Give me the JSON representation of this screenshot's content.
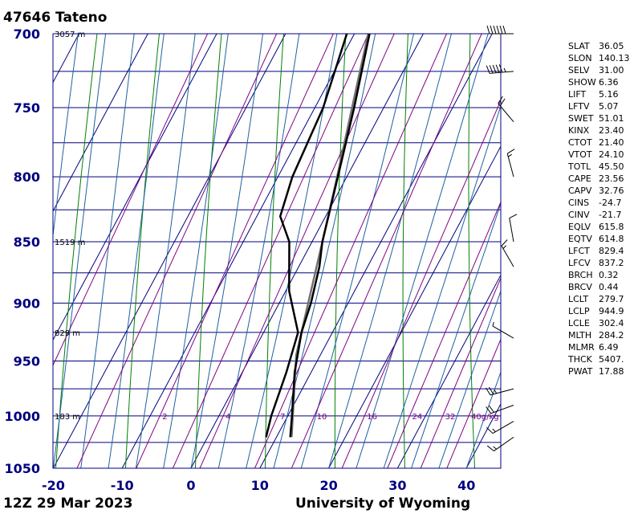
{
  "header": {
    "title": "47646  Tateno"
  },
  "footer": {
    "left": "12Z 29 Mar 2023",
    "right": "University of Wyoming"
  },
  "colors": {
    "axis_label": "#000080",
    "isobar": "#00007f",
    "isotherm": "#000080",
    "dry_adiabat": "#008000",
    "moist_adiabat": "#2060a0",
    "mixing_ratio": "#800080",
    "sounding": "#000000",
    "parcel": "#707070"
  },
  "chart_data": {
    "type": "skew-t",
    "station": "47646",
    "pressure_levels": [
      700,
      750,
      800,
      850,
      900,
      950,
      1000,
      1050
    ],
    "pressure_range": [
      1050,
      700
    ],
    "temperature_ticks": [
      -20,
      -10,
      0,
      10,
      20,
      30,
      40
    ],
    "temperature_range": [
      -20,
      45
    ],
    "height_labels": [
      {
        "p": 700,
        "label": "3057 m"
      },
      {
        "p": 850,
        "label": "1519 m"
      },
      {
        "p": 925,
        "label": "829 m"
      },
      {
        "p": 1000,
        "label": "183 m"
      }
    ],
    "mixing_ratio_labels": [
      "2",
      "4",
      "7",
      "10",
      "16",
      "24",
      "32",
      "40g/kg"
    ],
    "mixing_ratio_values": [
      2,
      4,
      7,
      10,
      16,
      24,
      32,
      40
    ],
    "temperature_profile": [
      {
        "p": 1020,
        "t": 12.0
      },
      {
        "p": 1000,
        "t": 10.6
      },
      {
        "p": 960,
        "t": 7.6
      },
      {
        "p": 925,
        "t": 5.5
      },
      {
        "p": 900,
        "t": 4.6
      },
      {
        "p": 870,
        "t": 3.0
      },
      {
        "p": 850,
        "t": 1.5
      },
      {
        "p": 800,
        "t": -1.3
      },
      {
        "p": 750,
        "t": -4.3
      },
      {
        "p": 700,
        "t": -7.8
      }
    ],
    "dewpoint_profile": [
      {
        "p": 1020,
        "t": 8.5
      },
      {
        "p": 1000,
        "t": 7.6
      },
      {
        "p": 960,
        "t": 6.4
      },
      {
        "p": 925,
        "t": 5.0
      },
      {
        "p": 890,
        "t": 0.5
      },
      {
        "p": 850,
        "t": -3.3
      },
      {
        "p": 830,
        "t": -6.6
      },
      {
        "p": 800,
        "t": -7.9
      },
      {
        "p": 750,
        "t": -8.8
      },
      {
        "p": 700,
        "t": -11.1
      }
    ],
    "parcel_profile": [
      {
        "p": 1020,
        "t": 12.2
      },
      {
        "p": 944.9,
        "t": 6.5
      },
      {
        "p": 900,
        "t": 4.2
      },
      {
        "p": 850,
        "t": 1.5
      },
      {
        "p": 800,
        "t": -1.4
      },
      {
        "p": 750,
        "t": -4.6
      },
      {
        "p": 700,
        "t": -8.0
      }
    ],
    "wind_barbs": [
      {
        "p": 700,
        "dir": 270,
        "spd": 60
      },
      {
        "p": 725,
        "dir": 265,
        "spd": 55
      },
      {
        "p": 760,
        "dir": 320,
        "spd": 20
      },
      {
        "p": 800,
        "dir": 345,
        "spd": 15
      },
      {
        "p": 850,
        "dir": 350,
        "spd": 10
      },
      {
        "p": 870,
        "dir": 330,
        "spd": 15
      },
      {
        "p": 930,
        "dir": 300,
        "spd": 5
      },
      {
        "p": 975,
        "dir": 255,
        "spd": 25
      },
      {
        "p": 990,
        "dir": 250,
        "spd": 20
      },
      {
        "p": 1005,
        "dir": 240,
        "spd": 15
      },
      {
        "p": 1020,
        "dir": 235,
        "spd": 15
      }
    ]
  },
  "indices": [
    {
      "name": "SLAT",
      "value": "36.05"
    },
    {
      "name": "SLON",
      "value": "140.13"
    },
    {
      "name": "SELV",
      "value": "31.00"
    },
    {
      "name": "SHOW",
      "value": "6.36"
    },
    {
      "name": "LIFT",
      "value": "5.16"
    },
    {
      "name": "LFTV",
      "value": "5.07"
    },
    {
      "name": "SWET",
      "value": "51.01"
    },
    {
      "name": "KINX",
      "value": "23.40"
    },
    {
      "name": "CTOT",
      "value": "21.40"
    },
    {
      "name": "VTOT",
      "value": "24.10"
    },
    {
      "name": "TOTL",
      "value": "45.50"
    },
    {
      "name": "CAPE",
      "value": "23.56"
    },
    {
      "name": "CAPV",
      "value": "32.76"
    },
    {
      "name": "CINS",
      "value": "-24.7"
    },
    {
      "name": "CINV",
      "value": "-21.7"
    },
    {
      "name": "EQLV",
      "value": "615.8"
    },
    {
      "name": "EQTV",
      "value": "614.8"
    },
    {
      "name": "LFCT",
      "value": "829.4"
    },
    {
      "name": "LFCV",
      "value": "837.2"
    },
    {
      "name": "BRCH",
      "value": "0.32"
    },
    {
      "name": "BRCV",
      "value": "0.44"
    },
    {
      "name": "LCLT",
      "value": "279.7"
    },
    {
      "name": "LCLP",
      "value": "944.9"
    },
    {
      "name": "LCLE",
      "value": "302.4"
    },
    {
      "name": "MLTH",
      "value": "284.2"
    },
    {
      "name": "MLMR",
      "value": "6.49"
    },
    {
      "name": "THCK",
      "value": "5407."
    },
    {
      "name": "PWAT",
      "value": "17.88"
    }
  ]
}
